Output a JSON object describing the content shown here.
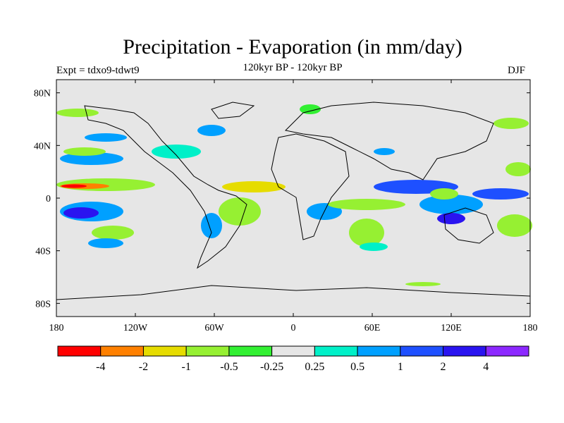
{
  "title": "Precipitation - Evaporation (in mm/day)",
  "subtitle": "120kyr BP - 120kyr BP",
  "experiment": "Expt = tdxo9-tdwt9",
  "season": "DJF",
  "map": {
    "projection": "cylindrical-equidistant",
    "lon_range": [
      -180,
      180
    ],
    "lat_range": [
      -90,
      90
    ],
    "x_ticks": [
      {
        "lon": -180,
        "label": "180"
      },
      {
        "lon": -120,
        "label": "120W"
      },
      {
        "lon": -60,
        "label": "60W"
      },
      {
        "lon": 0,
        "label": "0"
      },
      {
        "lon": 60,
        "label": "60E"
      },
      {
        "lon": 120,
        "label": "120E"
      },
      {
        "lon": 180,
        "label": "180"
      }
    ],
    "y_ticks": [
      {
        "lat": 80,
        "label": "80N"
      },
      {
        "lat": 40,
        "label": "40N"
      },
      {
        "lat": 0,
        "label": "0"
      },
      {
        "lat": -40,
        "label": "40S"
      },
      {
        "lat": -80,
        "label": "80S"
      }
    ],
    "background_color": "#e6e6e6",
    "coastline_color": "#000000"
  },
  "colorbar": {
    "colors": [
      "#ff0000",
      "#ff8000",
      "#e6dc00",
      "#96f032",
      "#32f032",
      "#e6e6e6",
      "#00f0c8",
      "#00a0ff",
      "#1e50ff",
      "#2a14f0",
      "#8c28ff"
    ],
    "labels": [
      "-4",
      "-2",
      "-1",
      "-0.5",
      "-0.25",
      "0.25",
      "0.5",
      "1",
      "2",
      "4"
    ]
  }
}
